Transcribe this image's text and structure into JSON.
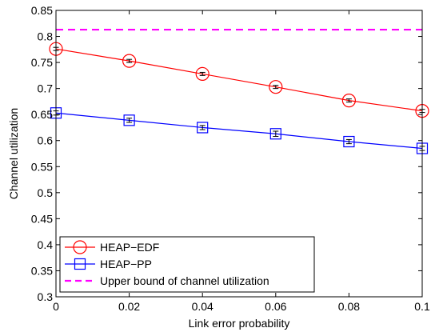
{
  "chart_data": {
    "type": "line",
    "xlabel": "Link error probability",
    "ylabel": "Channel utilization",
    "xlim": [
      0,
      0.1
    ],
    "ylim": [
      0.3,
      0.85
    ],
    "x_ticks": [
      0,
      0.02,
      0.04,
      0.06,
      0.08,
      0.1
    ],
    "x_tick_labels": [
      "0",
      "0.02",
      "0.04",
      "0.06",
      "0.08",
      "0.1"
    ],
    "y_ticks": [
      0.3,
      0.35,
      0.4,
      0.45,
      0.5,
      0.55,
      0.6,
      0.65,
      0.7,
      0.75,
      0.8,
      0.85
    ],
    "y_tick_labels": [
      "0.3",
      "0.35",
      "0.4",
      "0.45",
      "0.5",
      "0.55",
      "0.6",
      "0.65",
      "0.7",
      "0.75",
      "0.8",
      "0.85"
    ],
    "grid": false,
    "legend_position": "bottom-left",
    "x": [
      0,
      0.02,
      0.04,
      0.06,
      0.08,
      0.1
    ],
    "series": [
      {
        "name": "HEAP−EDF",
        "values": [
          0.776,
          0.753,
          0.728,
          0.703,
          0.677,
          0.657
        ],
        "error": [
          0.003,
          0.003,
          0.003,
          0.003,
          0.003,
          0.003
        ],
        "color": "#ff0000",
        "marker": "circle",
        "line_style": "solid"
      },
      {
        "name": "HEAP−PP",
        "values": [
          0.653,
          0.639,
          0.625,
          0.613,
          0.598,
          0.585
        ],
        "error": [
          0.004,
          0.004,
          0.004,
          0.005,
          0.004,
          0.004
        ],
        "color": "#0000ff",
        "marker": "square",
        "line_style": "solid"
      },
      {
        "name": "Upper bound of channel utilization",
        "values": [
          0.813,
          0.813,
          0.813,
          0.813,
          0.813,
          0.813
        ],
        "color": "#ff00ff",
        "marker": "none",
        "line_style": "dashed"
      }
    ]
  }
}
